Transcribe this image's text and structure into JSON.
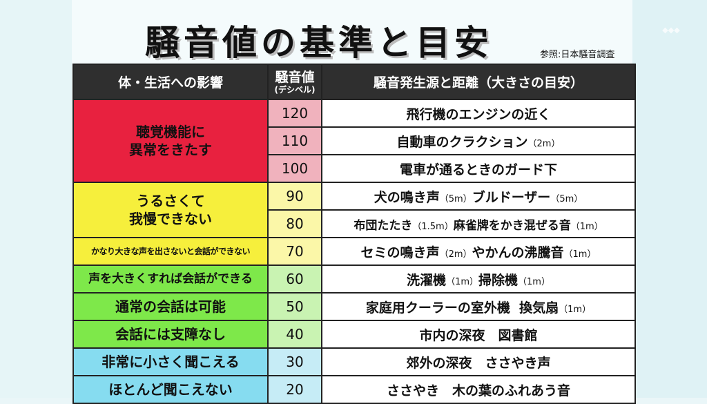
{
  "header": {
    "title": "騒音値の基準と目安",
    "source_note": "参照:日本騒音調査"
  },
  "table": {
    "columns": [
      "体・生活への影響",
      "騒音値",
      "騒音発生源と距離（大きさの目安）"
    ],
    "db_unit": "(デシベル)",
    "rows": [
      {
        "effect": "聴覚機能に\n異常をきたす",
        "effect_color": "#e8213f",
        "db": "120",
        "db_color": "#f0b2bd",
        "source": "飛行機のエンジンの近く",
        "distance": ""
      },
      {
        "db": "110",
        "db_color": "#f0b2bd",
        "source": "自動車のクラクション",
        "distance": "（2m）"
      },
      {
        "db": "100",
        "db_color": "#f0b2bd",
        "source": "電車が通るときのガード下",
        "distance": ""
      },
      {
        "effect": "うるさくて\n我慢できない",
        "effect_color": "#f6ef3c",
        "db": "90",
        "db_color": "#fbf7a8",
        "source": "犬の鳴き声",
        "distance": "（5m）",
        "source2": "ブルドーザー",
        "distance2": "（5m）"
      },
      {
        "db": "80",
        "db_color": "#fbf7a8",
        "source": "布団たたき",
        "distance": "（1.5m）",
        "source2": "麻雀牌をかき混ぜる音",
        "distance2": "（1m）"
      },
      {
        "effect": "かなり大きな声を出さないと会話ができない",
        "effect_color": "#f6ef3c",
        "db": "70",
        "db_color": "#fbf7a8",
        "source": "セミの鳴き声",
        "distance": "（2m）",
        "source2": "やかんの沸騰音",
        "distance2": "（1m）"
      },
      {
        "effect": "声を大きくすれば会話ができる",
        "effect_color": "#7ee84a",
        "db": "60",
        "db_color": "#c9f3b2",
        "source": "洗濯機",
        "distance": "（1m）",
        "source2": "掃除機",
        "distance2": "（1m）"
      },
      {
        "effect": "通常の会話は可能",
        "effect_color": "#7ee84a",
        "db": "50",
        "db_color": "#c9f3b2",
        "source": "家庭用クーラーの室外機",
        "distance": "",
        "source2": "換気扇",
        "distance2": "（1m）"
      },
      {
        "effect": "会話には支障なし",
        "effect_color": "#7ee84a",
        "db": "40",
        "db_color": "#c9f3b2",
        "source": "市内の深夜　図書館",
        "distance": ""
      },
      {
        "effect": "非常に小さく聞こえる",
        "effect_color": "#86dcf0",
        "db": "30",
        "db_color": "#c6ecf6",
        "source": "郊外の深夜　ささやき声",
        "distance": ""
      },
      {
        "effect": "ほとんど聞こえない",
        "effect_color": "#86dcf0",
        "db": "20",
        "db_color": "#c6ecf6",
        "source": "ささやき　木の葉のふれあう音",
        "distance": ""
      }
    ]
  }
}
